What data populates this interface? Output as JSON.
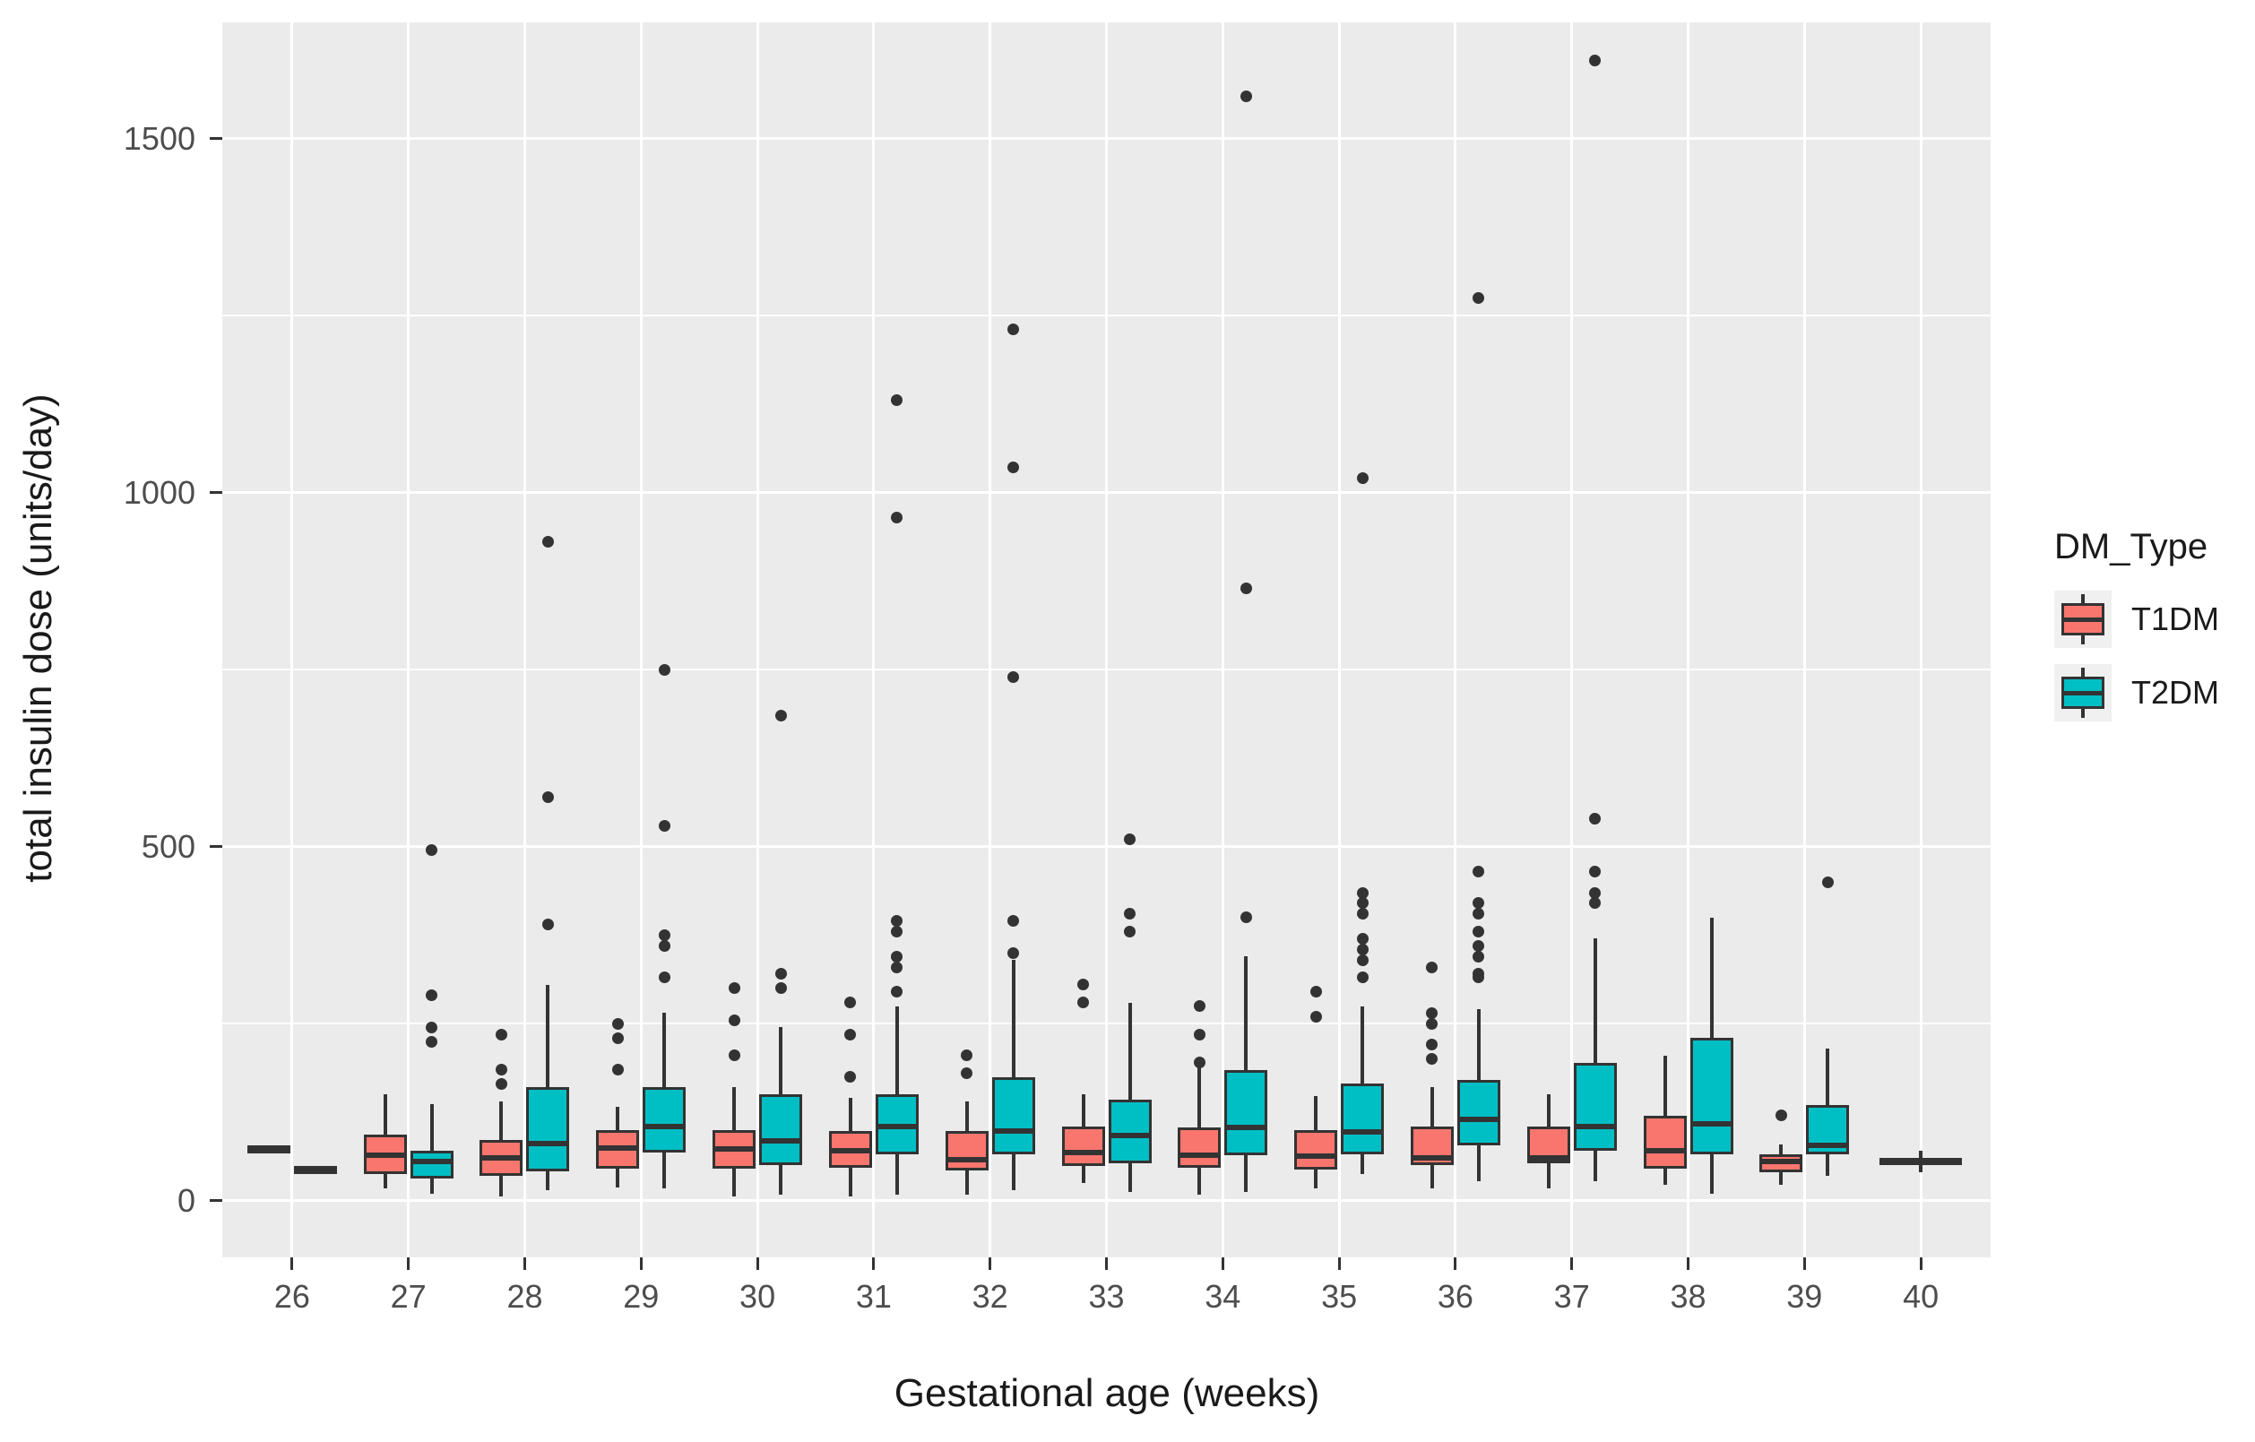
{
  "chart_data": {
    "type": "boxplot",
    "title": "",
    "xlabel": "Gestational age (weeks)",
    "ylabel": "total insulin dose (units/day)",
    "categories": [
      "26",
      "27",
      "28",
      "29",
      "30",
      "31",
      "32",
      "33",
      "34",
      "35",
      "36",
      "37",
      "38",
      "39",
      "40"
    ],
    "y_ticks": [
      0,
      500,
      1000,
      1500
    ],
    "y_minor": [
      250,
      750,
      1250
    ],
    "ylim": [
      -80,
      1664
    ],
    "grid": true,
    "legend_position": "right",
    "legend": {
      "title": "DM_Type",
      "items": [
        {
          "label": "T1DM",
          "color": "#F8766D"
        },
        {
          "label": "T2DM",
          "color": "#00BFC4"
        }
      ]
    },
    "series_colors": {
      "T1DM": "#F8766D",
      "T2DM": "#00BFC4",
      "single": "#3A3A3A"
    },
    "boxes": [
      {
        "week": "26",
        "group": "T1DM",
        "lo": 75,
        "q1": 75,
        "med": 75,
        "q3": 75,
        "hi": 75,
        "outliers": []
      },
      {
        "week": "26",
        "group": "T2DM",
        "lo": 45,
        "q1": 45,
        "med": 45,
        "q3": 45,
        "hi": 45,
        "outliers": []
      },
      {
        "week": "27",
        "group": "T1DM",
        "lo": 17,
        "q1": 38,
        "med": 64,
        "q3": 94,
        "hi": 150,
        "outliers": []
      },
      {
        "week": "27",
        "group": "T2DM",
        "lo": 10,
        "q1": 32,
        "med": 55,
        "q3": 71,
        "hi": 137,
        "outliers": [
          225,
          245,
          290,
          495
        ]
      },
      {
        "week": "28",
        "group": "T1DM",
        "lo": 6,
        "q1": 35,
        "med": 60,
        "q3": 86,
        "hi": 140,
        "outliers": [
          165,
          185,
          235
        ]
      },
      {
        "week": "28",
        "group": "T2DM",
        "lo": 15,
        "q1": 41,
        "med": 81,
        "q3": 160,
        "hi": 305,
        "outliers": [
          390,
          570,
          930
        ]
      },
      {
        "week": "29",
        "group": "T1DM",
        "lo": 19,
        "q1": 45,
        "med": 75,
        "q3": 100,
        "hi": 132,
        "outliers": [
          185,
          230,
          250
        ]
      },
      {
        "week": "29",
        "group": "T2DM",
        "lo": 17,
        "q1": 68,
        "med": 105,
        "q3": 160,
        "hi": 265,
        "outliers": [
          315,
          360,
          375,
          530,
          750
        ]
      },
      {
        "week": "30",
        "group": "T1DM",
        "lo": 6,
        "q1": 45,
        "med": 73,
        "q3": 100,
        "hi": 160,
        "outliers": [
          205,
          255,
          300
        ]
      },
      {
        "week": "30",
        "group": "T2DM",
        "lo": 8,
        "q1": 50,
        "med": 85,
        "q3": 150,
        "hi": 245,
        "outliers": [
          300,
          320,
          685
        ]
      },
      {
        "week": "31",
        "group": "T1DM",
        "lo": 6,
        "q1": 47,
        "med": 71,
        "q3": 98,
        "hi": 145,
        "outliers": [
          175,
          235,
          280
        ]
      },
      {
        "week": "31",
        "group": "T2DM",
        "lo": 8,
        "q1": 65,
        "med": 105,
        "q3": 150,
        "hi": 275,
        "outliers": [
          295,
          330,
          345,
          380,
          395,
          965,
          1130
        ]
      },
      {
        "week": "32",
        "group": "T1DM",
        "lo": 8,
        "q1": 43,
        "med": 58,
        "q3": 98,
        "hi": 140,
        "outliers": [
          180,
          205
        ]
      },
      {
        "week": "32",
        "group": "T2DM",
        "lo": 15,
        "q1": 66,
        "med": 98,
        "q3": 175,
        "hi": 340,
        "outliers": [
          350,
          395,
          740,
          1035,
          1230
        ]
      },
      {
        "week": "33",
        "group": "T1DM",
        "lo": 25,
        "q1": 49,
        "med": 68,
        "q3": 105,
        "hi": 150,
        "outliers": [
          280,
          305
        ]
      },
      {
        "week": "33",
        "group": "T2DM",
        "lo": 13,
        "q1": 53,
        "med": 92,
        "q3": 143,
        "hi": 280,
        "outliers": [
          380,
          405,
          510
        ]
      },
      {
        "week": "34",
        "group": "T1DM",
        "lo": 9,
        "q1": 47,
        "med": 64,
        "q3": 103,
        "hi": 190,
        "outliers": [
          195,
          235,
          275
        ]
      },
      {
        "week": "34",
        "group": "T2DM",
        "lo": 13,
        "q1": 64,
        "med": 103,
        "q3": 185,
        "hi": 345,
        "outliers": [
          400,
          865,
          1560
        ]
      },
      {
        "week": "35",
        "group": "T1DM",
        "lo": 17,
        "q1": 44,
        "med": 63,
        "q3": 100,
        "hi": 148,
        "outliers": [
          260,
          295
        ]
      },
      {
        "week": "35",
        "group": "T2DM",
        "lo": 38,
        "q1": 65,
        "med": 97,
        "q3": 165,
        "hi": 275,
        "outliers": [
          315,
          340,
          355,
          370,
          405,
          420,
          435,
          1020
        ]
      },
      {
        "week": "36",
        "group": "T1DM",
        "lo": 17,
        "q1": 50,
        "med": 60,
        "q3": 105,
        "hi": 160,
        "outliers": [
          200,
          220,
          250,
          265,
          330
        ]
      },
      {
        "week": "36",
        "group": "T2DM",
        "lo": 28,
        "q1": 78,
        "med": 115,
        "q3": 170,
        "hi": 270,
        "outliers": [
          315,
          320,
          345,
          360,
          380,
          405,
          420,
          465,
          1275
        ]
      },
      {
        "week": "37",
        "group": "T1DM",
        "lo": 17,
        "q1": 53,
        "med": 60,
        "q3": 105,
        "hi": 150,
        "outliers": []
      },
      {
        "week": "37",
        "group": "T2DM",
        "lo": 28,
        "q1": 70,
        "med": 105,
        "q3": 195,
        "hi": 370,
        "outliers": [
          420,
          435,
          465,
          540,
          1610
        ]
      },
      {
        "week": "38",
        "group": "T1DM",
        "lo": 23,
        "q1": 45,
        "med": 70,
        "q3": 120,
        "hi": 205,
        "outliers": []
      },
      {
        "week": "38",
        "group": "T2DM",
        "lo": 10,
        "q1": 65,
        "med": 108,
        "q3": 230,
        "hi": 400,
        "outliers": []
      },
      {
        "week": "39",
        "group": "T1DM",
        "lo": 22,
        "q1": 40,
        "med": 55,
        "q3": 65,
        "hi": 80,
        "outliers": [
          120
        ]
      },
      {
        "week": "39",
        "group": "T2DM",
        "lo": 35,
        "q1": 65,
        "med": 78,
        "q3": 135,
        "hi": 215,
        "outliers": [
          450
        ]
      },
      {
        "week": "40",
        "group": "single",
        "lo": 40,
        "q1": 50,
        "med": 55,
        "q3": 60,
        "hi": 70,
        "outliers": [],
        "wide": true
      }
    ]
  },
  "style_colors": {
    "panel_bg": "#EBEBEB",
    "grid": "#FFFFFF",
    "box_border": "#333333",
    "tick_text": "#4D4D4D",
    "title_text": "#1A1A1A",
    "legend_key_bg": "#F0F0F0"
  }
}
